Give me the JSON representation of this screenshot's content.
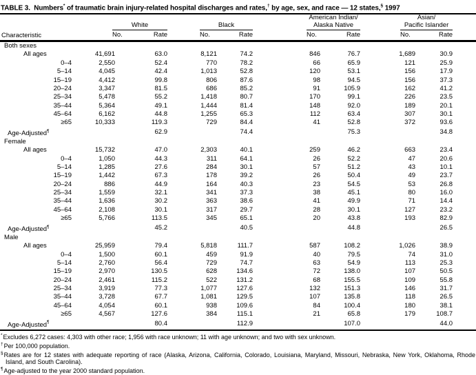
{
  "title": {
    "part1": "TABLE 3.  Numbers",
    "sup1": "*",
    "part2": " of traumatic brain injury-related hospital discharges and rates,",
    "sup2": "†",
    "part3": " by age, sex, and race — 12 states,",
    "sup3": "§",
    "part4": " 1997"
  },
  "header": {
    "characteristic": "Characteristic",
    "groups": [
      {
        "lines": [
          "White"
        ],
        "no": "No.",
        "rate": "Rate"
      },
      {
        "lines": [
          "Black"
        ],
        "no": "No.",
        "rate": "Rate"
      },
      {
        "lines": [
          "American Indian/",
          "Alaska Native"
        ],
        "no": "No.",
        "rate": "Rate"
      },
      {
        "lines": [
          "Asian/",
          "Pacific Islander"
        ],
        "no": "No.",
        "rate": "Rate"
      }
    ]
  },
  "sections": [
    {
      "label": "Both sexes",
      "rows": [
        {
          "label": "All ages",
          "type": "all",
          "values": [
            "41,691",
            "63.0",
            "8,121",
            "74.2",
            "846",
            "76.7",
            "1,689",
            "30.9"
          ]
        },
        {
          "label": "0–4",
          "type": "age",
          "values": [
            "2,550",
            "52.4",
            "770",
            "78.2",
            "66",
            "65.9",
            "121",
            "25.9"
          ]
        },
        {
          "label": "5–14",
          "type": "age",
          "values": [
            "4,045",
            "42.4",
            "1,013",
            "52.8",
            "120",
            "53.1",
            "156",
            "17.9"
          ]
        },
        {
          "label": "15–19",
          "type": "age",
          "values": [
            "4,412",
            "99.8",
            "806",
            "87.6",
            "98",
            "94.5",
            "156",
            "37.3"
          ]
        },
        {
          "label": "20–24",
          "type": "age",
          "values": [
            "3,347",
            "81.5",
            "686",
            "85.2",
            "91",
            "105.9",
            "162",
            "41.2"
          ]
        },
        {
          "label": "25–34",
          "type": "age",
          "values": [
            "5,478",
            "55.2",
            "1,418",
            "80.7",
            "170",
            "99.1",
            "226",
            "23.5"
          ]
        },
        {
          "label": "35–44",
          "type": "age",
          "values": [
            "5,364",
            "49.1",
            "1,444",
            "81.4",
            "148",
            "92.0",
            "189",
            "20.1"
          ]
        },
        {
          "label": "45–64",
          "type": "age",
          "values": [
            "6,162",
            "44.8",
            "1,255",
            "65.3",
            "112",
            "63.4",
            "307",
            "30.1"
          ]
        },
        {
          "label": "≥65",
          "type": "age",
          "values": [
            "10,333",
            "119.3",
            "729",
            "84.4",
            "41",
            "52.8",
            "372",
            "93.6"
          ]
        },
        {
          "label": "Age-Adjusted",
          "sup": "¶",
          "type": "adj",
          "values": [
            "",
            "62.9",
            "",
            "74.4",
            "",
            "75.3",
            "",
            "34.8"
          ]
        }
      ]
    },
    {
      "label": "Female",
      "rows": [
        {
          "label": "All ages",
          "type": "all",
          "values": [
            "15,732",
            "47.0",
            "2,303",
            "40.1",
            "259",
            "46.2",
            "663",
            "23.4"
          ]
        },
        {
          "label": "0–4",
          "type": "age",
          "values": [
            "1,050",
            "44.3",
            "311",
            "64.1",
            "26",
            "52.2",
            "47",
            "20.6"
          ]
        },
        {
          "label": "5–14",
          "type": "age",
          "values": [
            "1,285",
            "27.6",
            "284",
            "30.1",
            "57",
            "51.2",
            "43",
            "10.1"
          ]
        },
        {
          "label": "15–19",
          "type": "age",
          "values": [
            "1,442",
            "67.3",
            "178",
            "39.2",
            "26",
            "50.4",
            "49",
            "23.7"
          ]
        },
        {
          "label": "20–24",
          "type": "age",
          "values": [
            "886",
            "44.9",
            "164",
            "40.3",
            "23",
            "54.5",
            "53",
            "26.8"
          ]
        },
        {
          "label": "25–34",
          "type": "age",
          "values": [
            "1,559",
            "32.1",
            "341",
            "37.3",
            "38",
            "45.1",
            "80",
            "16.0"
          ]
        },
        {
          "label": "35–44",
          "type": "age",
          "values": [
            "1,636",
            "30.2",
            "363",
            "38.6",
            "41",
            "49.9",
            "71",
            "14.4"
          ]
        },
        {
          "label": "45–64",
          "type": "age",
          "values": [
            "2,108",
            "30.1",
            "317",
            "29.7",
            "28",
            "30.1",
            "127",
            "23.2"
          ]
        },
        {
          "label": "≥65",
          "type": "age",
          "values": [
            "5,766",
            "113.5",
            "345",
            "65.1",
            "20",
            "43.8",
            "193",
            "82.9"
          ]
        },
        {
          "label": "Age-Adjusted",
          "sup": "¶",
          "type": "adj",
          "values": [
            "",
            "45.2",
            "",
            "40.5",
            "",
            "44.8",
            "",
            "26.5"
          ]
        }
      ]
    },
    {
      "label": "Male",
      "rows": [
        {
          "label": "All ages",
          "type": "all",
          "values": [
            "25,959",
            "79.4",
            "5,818",
            "111.7",
            "587",
            "108.2",
            "1,026",
            "38.9"
          ]
        },
        {
          "label": "0–4",
          "type": "age",
          "values": [
            "1,500",
            "60.1",
            "459",
            "91.9",
            "40",
            "79.5",
            "74",
            "31.0"
          ]
        },
        {
          "label": "5–14",
          "type": "age",
          "values": [
            "2,760",
            "56.4",
            "729",
            "74.7",
            "63",
            "54.9",
            "113",
            "25.3"
          ]
        },
        {
          "label": "15–19",
          "type": "age",
          "values": [
            "2,970",
            "130.5",
            "628",
            "134.6",
            "72",
            "138.0",
            "107",
            "50.5"
          ]
        },
        {
          "label": "20–24",
          "type": "age",
          "values": [
            "2,461",
            "115.2",
            "522",
            "131.2",
            "68",
            "155.5",
            "109",
            "55.8"
          ]
        },
        {
          "label": "25–34",
          "type": "age",
          "values": [
            "3,919",
            "77.3",
            "1,077",
            "127.6",
            "132",
            "151.3",
            "146",
            "31.7"
          ]
        },
        {
          "label": "35–44",
          "type": "age",
          "values": [
            "3,728",
            "67.7",
            "1,081",
            "129.5",
            "107",
            "135.8",
            "118",
            "26.5"
          ]
        },
        {
          "label": "45–64",
          "type": "age",
          "values": [
            "4,054",
            "60.1",
            "938",
            "109.6",
            "84",
            "100.4",
            "180",
            "38.1"
          ]
        },
        {
          "label": "≥65",
          "type": "age",
          "values": [
            "4,567",
            "127.6",
            "384",
            "115.1",
            "21",
            "65.8",
            "179",
            "108.7"
          ]
        },
        {
          "label": "Age-Adjusted",
          "sup": "¶",
          "type": "adj",
          "values": [
            "",
            "80.4",
            "",
            "112.9",
            "",
            "107.0",
            "",
            "44.0"
          ]
        }
      ]
    }
  ],
  "footnotes": [
    {
      "marker": "*",
      "text": "Excludes 6,272 cases: 4,303 with other race; 1,956 with race unknown; 11 with age unknown; and two with sex unknown."
    },
    {
      "marker": "†",
      "text": "Per 100,000 population."
    },
    {
      "marker": "§",
      "text": "Rates are for 12 states with adequate reporting of race (Alaska, Arizona, California, Colorado, Louisiana, Maryland, Missouri, Nebraska, New York, Oklahoma, Rhode Island, and South Carolina)."
    },
    {
      "marker": "¶",
      "text": "Age-adjusted to the year 2000 standard population."
    }
  ]
}
